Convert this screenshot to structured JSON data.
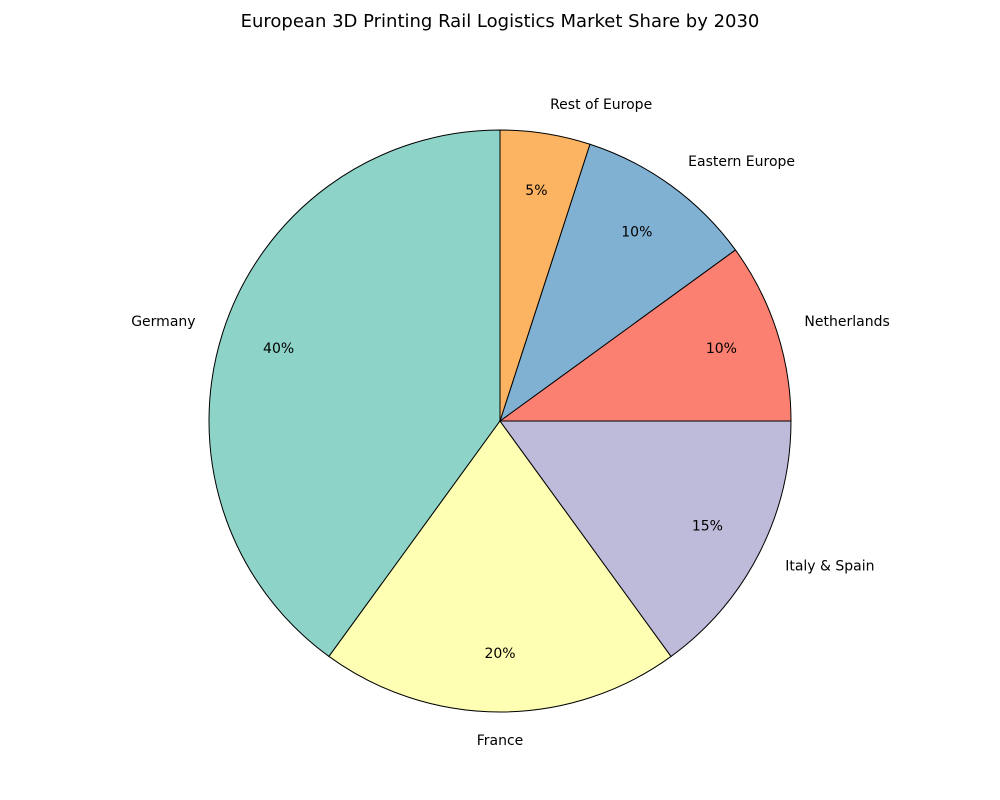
{
  "chart_data": {
    "type": "pie",
    "title": "European 3D Printing Rail Logistics Market Share by 2030",
    "categories": [
      "Germany",
      "France",
      "Italy & Spain",
      "Netherlands",
      "Eastern Europe",
      "Rest of Europe"
    ],
    "values": [
      40,
      20,
      15,
      10,
      10,
      5
    ],
    "value_labels": [
      "40%",
      "20%",
      "15%",
      "10%",
      "10%",
      "5%"
    ],
    "colors": [
      "#8dd3c7",
      "#ffffb3",
      "#bebada",
      "#fb8072",
      "#80b1d3",
      "#fdb462"
    ]
  }
}
